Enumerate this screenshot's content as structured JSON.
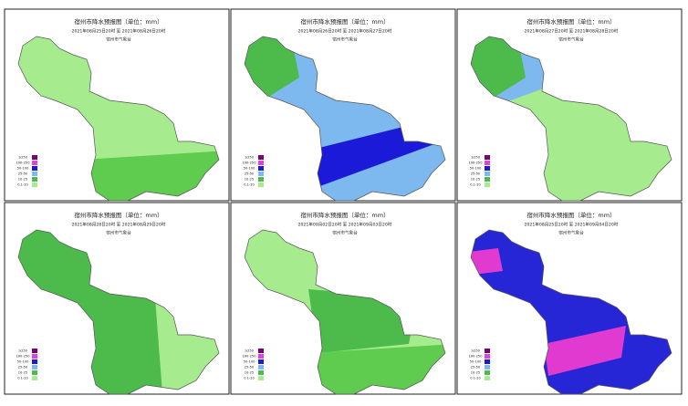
{
  "panels": [
    {
      "title": "宿州市降水预报图（单位：mm）",
      "period": "2021年08月25日20时 至 2021年08月26日20时",
      "issuer": "宿州市气象台"
    },
    {
      "title": "宿州市降水预报图（单位：mm）",
      "period": "2021年08月26日20时 至 2021年08月27日20时",
      "issuer": "宿州市气象台"
    },
    {
      "title": "宿州市降水预报图（单位：mm）",
      "period": "2021年08月27日20时 至 2021年08月28日20时",
      "issuer": "宿州市气象台"
    },
    {
      "title": "宿州市降水预报图（单位：mm）",
      "period": "2021年08月28日20时 至 2021年08月29日20时",
      "issuer": "宿州市气象台"
    },
    {
      "title": "宿州市降水预报图（单位：mm）",
      "period": "2021年09月02日20时 至 2021年09月03日20时",
      "issuer": "宿州市气象台"
    },
    {
      "title": "宿州市降水预报图（单位：mm）",
      "period": "2021年08月25日20时 至 2021年09月04日20时",
      "issuer": "宿州市气象台"
    }
  ],
  "legend": [
    "≥250",
    "100-250",
    "50-100",
    "25-50",
    "10-25",
    "0.1-10"
  ]
}
